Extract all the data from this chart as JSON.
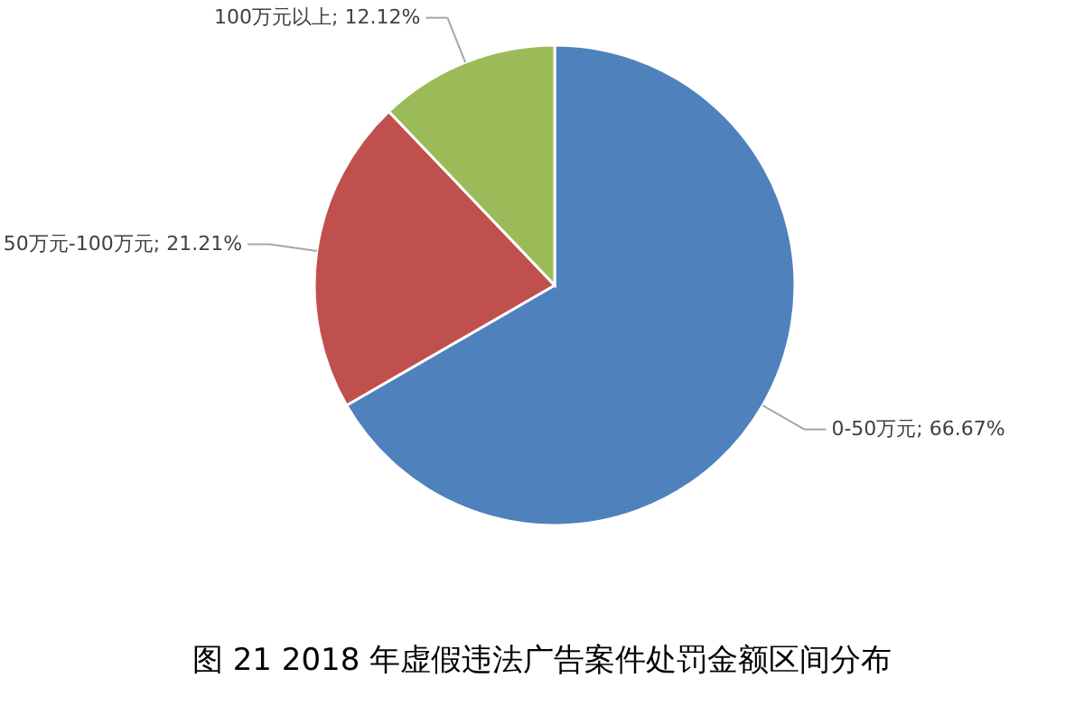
{
  "chart_data": {
    "type": "pie",
    "title": "图 21    2018 年虚假违法广告案件处罚金额区间分布",
    "categories": [
      "0-50万元",
      "50万元-100万元",
      "100万元以上"
    ],
    "values": [
      66.67,
      21.21,
      12.12
    ],
    "value_labels": [
      "66.67%",
      "21.21%",
      "12.12%"
    ],
    "colors": [
      "#4f81bd",
      "#c0504d",
      "#9bbb59"
    ]
  }
}
